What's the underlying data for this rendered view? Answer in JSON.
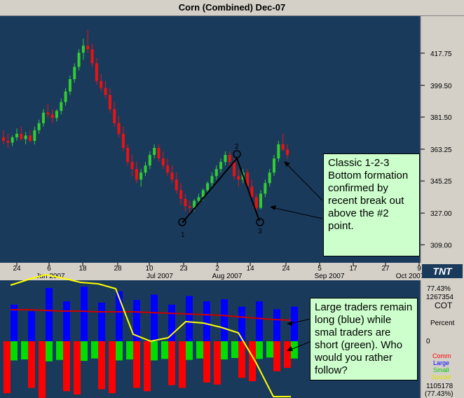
{
  "title": "Corn (Combined) Dec-07",
  "colors": {
    "background": "#1a3a5c",
    "up_candle": "#33cc33",
    "down_candle": "#ee1111",
    "large_traders": "#0000ff",
    "small_traders": "#00dd00",
    "commercials": "#ff0000",
    "spread": "#ffff00",
    "cot_line": "#cc0000",
    "callout": "#ccffcc"
  },
  "logo": "TNT",
  "annotations": {
    "pattern_points": [
      "1",
      "2",
      "3"
    ],
    "callout_top": "Classic 1-2-3 Bottom formation confirmed by recent break out above the #2 point.",
    "callout_bottom": "Large traders remain long (blue) while smal traders are short (green). Who would you rather follow?"
  },
  "cot_panel": {
    "title": "COT",
    "percent_label": "Percent",
    "top_value": "77.43%",
    "top_count": "1267354",
    "zero_label": "0",
    "bottom_count": "1105178",
    "bottom_value": "(77.43%)",
    "legend": [
      "Comm",
      "Large",
      "Small",
      "Spread"
    ]
  },
  "chart_data": [
    {
      "type": "candlestick",
      "title": "Corn (Combined) Dec-07",
      "y_ticks": [
        "417.75",
        "399.50",
        "381.50",
        "363.25",
        "345.25",
        "327.00",
        "309.00"
      ],
      "ylim": [
        300,
        436
      ],
      "x_day_ticks": [
        "24",
        "6",
        "18",
        "28",
        "10",
        "23",
        "2",
        "14",
        "24",
        "5",
        "17",
        "27",
        "9"
      ],
      "x_month_ticks": [
        "Jun 2007",
        "Jul 2007",
        "Aug 2007",
        "Sep 2007",
        "Oct 2007"
      ],
      "ohlc": [
        [
          370,
          374,
          366,
          368
        ],
        [
          368,
          372,
          364,
          367
        ],
        [
          367,
          371,
          365,
          370
        ],
        [
          370,
          375,
          368,
          372
        ],
        [
          372,
          376,
          368,
          369
        ],
        [
          369,
          373,
          366,
          371
        ],
        [
          371,
          374,
          367,
          368
        ],
        [
          368,
          376,
          366,
          374
        ],
        [
          374,
          380,
          372,
          378
        ],
        [
          378,
          386,
          376,
          384
        ],
        [
          384,
          389,
          381,
          383
        ],
        [
          383,
          386,
          378,
          381
        ],
        [
          381,
          386,
          379,
          385
        ],
        [
          385,
          392,
          383,
          390
        ],
        [
          390,
          398,
          388,
          396
        ],
        [
          396,
          405,
          394,
          403
        ],
        [
          403,
          412,
          401,
          410
        ],
        [
          410,
          420,
          408,
          418
        ],
        [
          418,
          426,
          414,
          422
        ],
        [
          422,
          431,
          418,
          420
        ],
        [
          420,
          423,
          410,
          412
        ],
        [
          412,
          415,
          400,
          402
        ],
        [
          402,
          406,
          396,
          398
        ],
        [
          398,
          402,
          392,
          394
        ],
        [
          394,
          398,
          384,
          386
        ],
        [
          386,
          390,
          376,
          378
        ],
        [
          378,
          382,
          370,
          372
        ],
        [
          372,
          376,
          362,
          364
        ],
        [
          364,
          366,
          354,
          356
        ],
        [
          356,
          360,
          348,
          352
        ],
        [
          352,
          356,
          344,
          346
        ],
        [
          346,
          352,
          342,
          350
        ],
        [
          350,
          356,
          348,
          354
        ],
        [
          354,
          362,
          352,
          360
        ],
        [
          360,
          366,
          358,
          364
        ],
        [
          364,
          366,
          356,
          358
        ],
        [
          358,
          362,
          352,
          354
        ],
        [
          354,
          358,
          348,
          350
        ],
        [
          350,
          354,
          344,
          346
        ],
        [
          346,
          350,
          338,
          340
        ],
        [
          340,
          344,
          332,
          335
        ],
        [
          335,
          338,
          328,
          331
        ],
        [
          331,
          334,
          326,
          330
        ],
        [
          330,
          335,
          328,
          334
        ],
        [
          334,
          338,
          332,
          336
        ],
        [
          336,
          341,
          334,
          340
        ],
        [
          340,
          345,
          338,
          344
        ],
        [
          344,
          350,
          342,
          348
        ],
        [
          348,
          354,
          346,
          352
        ],
        [
          352,
          358,
          350,
          356
        ],
        [
          356,
          362,
          354,
          360
        ],
        [
          360,
          362,
          354,
          356
        ],
        [
          356,
          358,
          346,
          348
        ],
        [
          348,
          352,
          342,
          346
        ],
        [
          346,
          352,
          344,
          350
        ],
        [
          350,
          352,
          340,
          342
        ],
        [
          342,
          346,
          334,
          336
        ],
        [
          336,
          338,
          327,
          330
        ],
        [
          330,
          340,
          329,
          338
        ],
        [
          338,
          346,
          336,
          344
        ],
        [
          344,
          352,
          342,
          350
        ],
        [
          350,
          360,
          348,
          358
        ],
        [
          358,
          368,
          356,
          366
        ],
        [
          366,
          372,
          362,
          363
        ],
        [
          363,
          366,
          358,
          360
        ]
      ]
    },
    {
      "type": "bar",
      "title": "COT",
      "series": [
        {
          "name": "Large",
          "values": [
            55,
            45,
            80,
            60,
            82,
            58,
            75,
            62,
            70,
            55,
            68,
            60,
            63,
            52,
            60,
            48,
            52
          ]
        },
        {
          "name": "Small",
          "values": [
            -40,
            -38,
            -42,
            -39,
            -41,
            -36,
            -40,
            -38,
            -40,
            -37,
            -39,
            -36,
            -38,
            -35,
            -37,
            -34,
            -36
          ]
        },
        {
          "name": "Comm",
          "values": [
            -78,
            -70,
            -85,
            -75,
            -80,
            -72,
            -78,
            -70,
            -75,
            -66,
            -70,
            -62,
            -65,
            -55,
            -60,
            -45,
            -40
          ]
        }
      ],
      "cot_line": [
        45,
        45,
        44,
        43,
        43,
        42,
        42,
        42,
        41,
        40,
        39,
        38,
        37,
        35,
        33,
        31,
        30
      ],
      "spread_line": [
        80,
        88,
        95,
        90,
        84,
        82,
        75,
        10,
        0,
        5,
        28,
        26,
        20,
        12,
        -30,
        -95,
        -150
      ]
    }
  ]
}
